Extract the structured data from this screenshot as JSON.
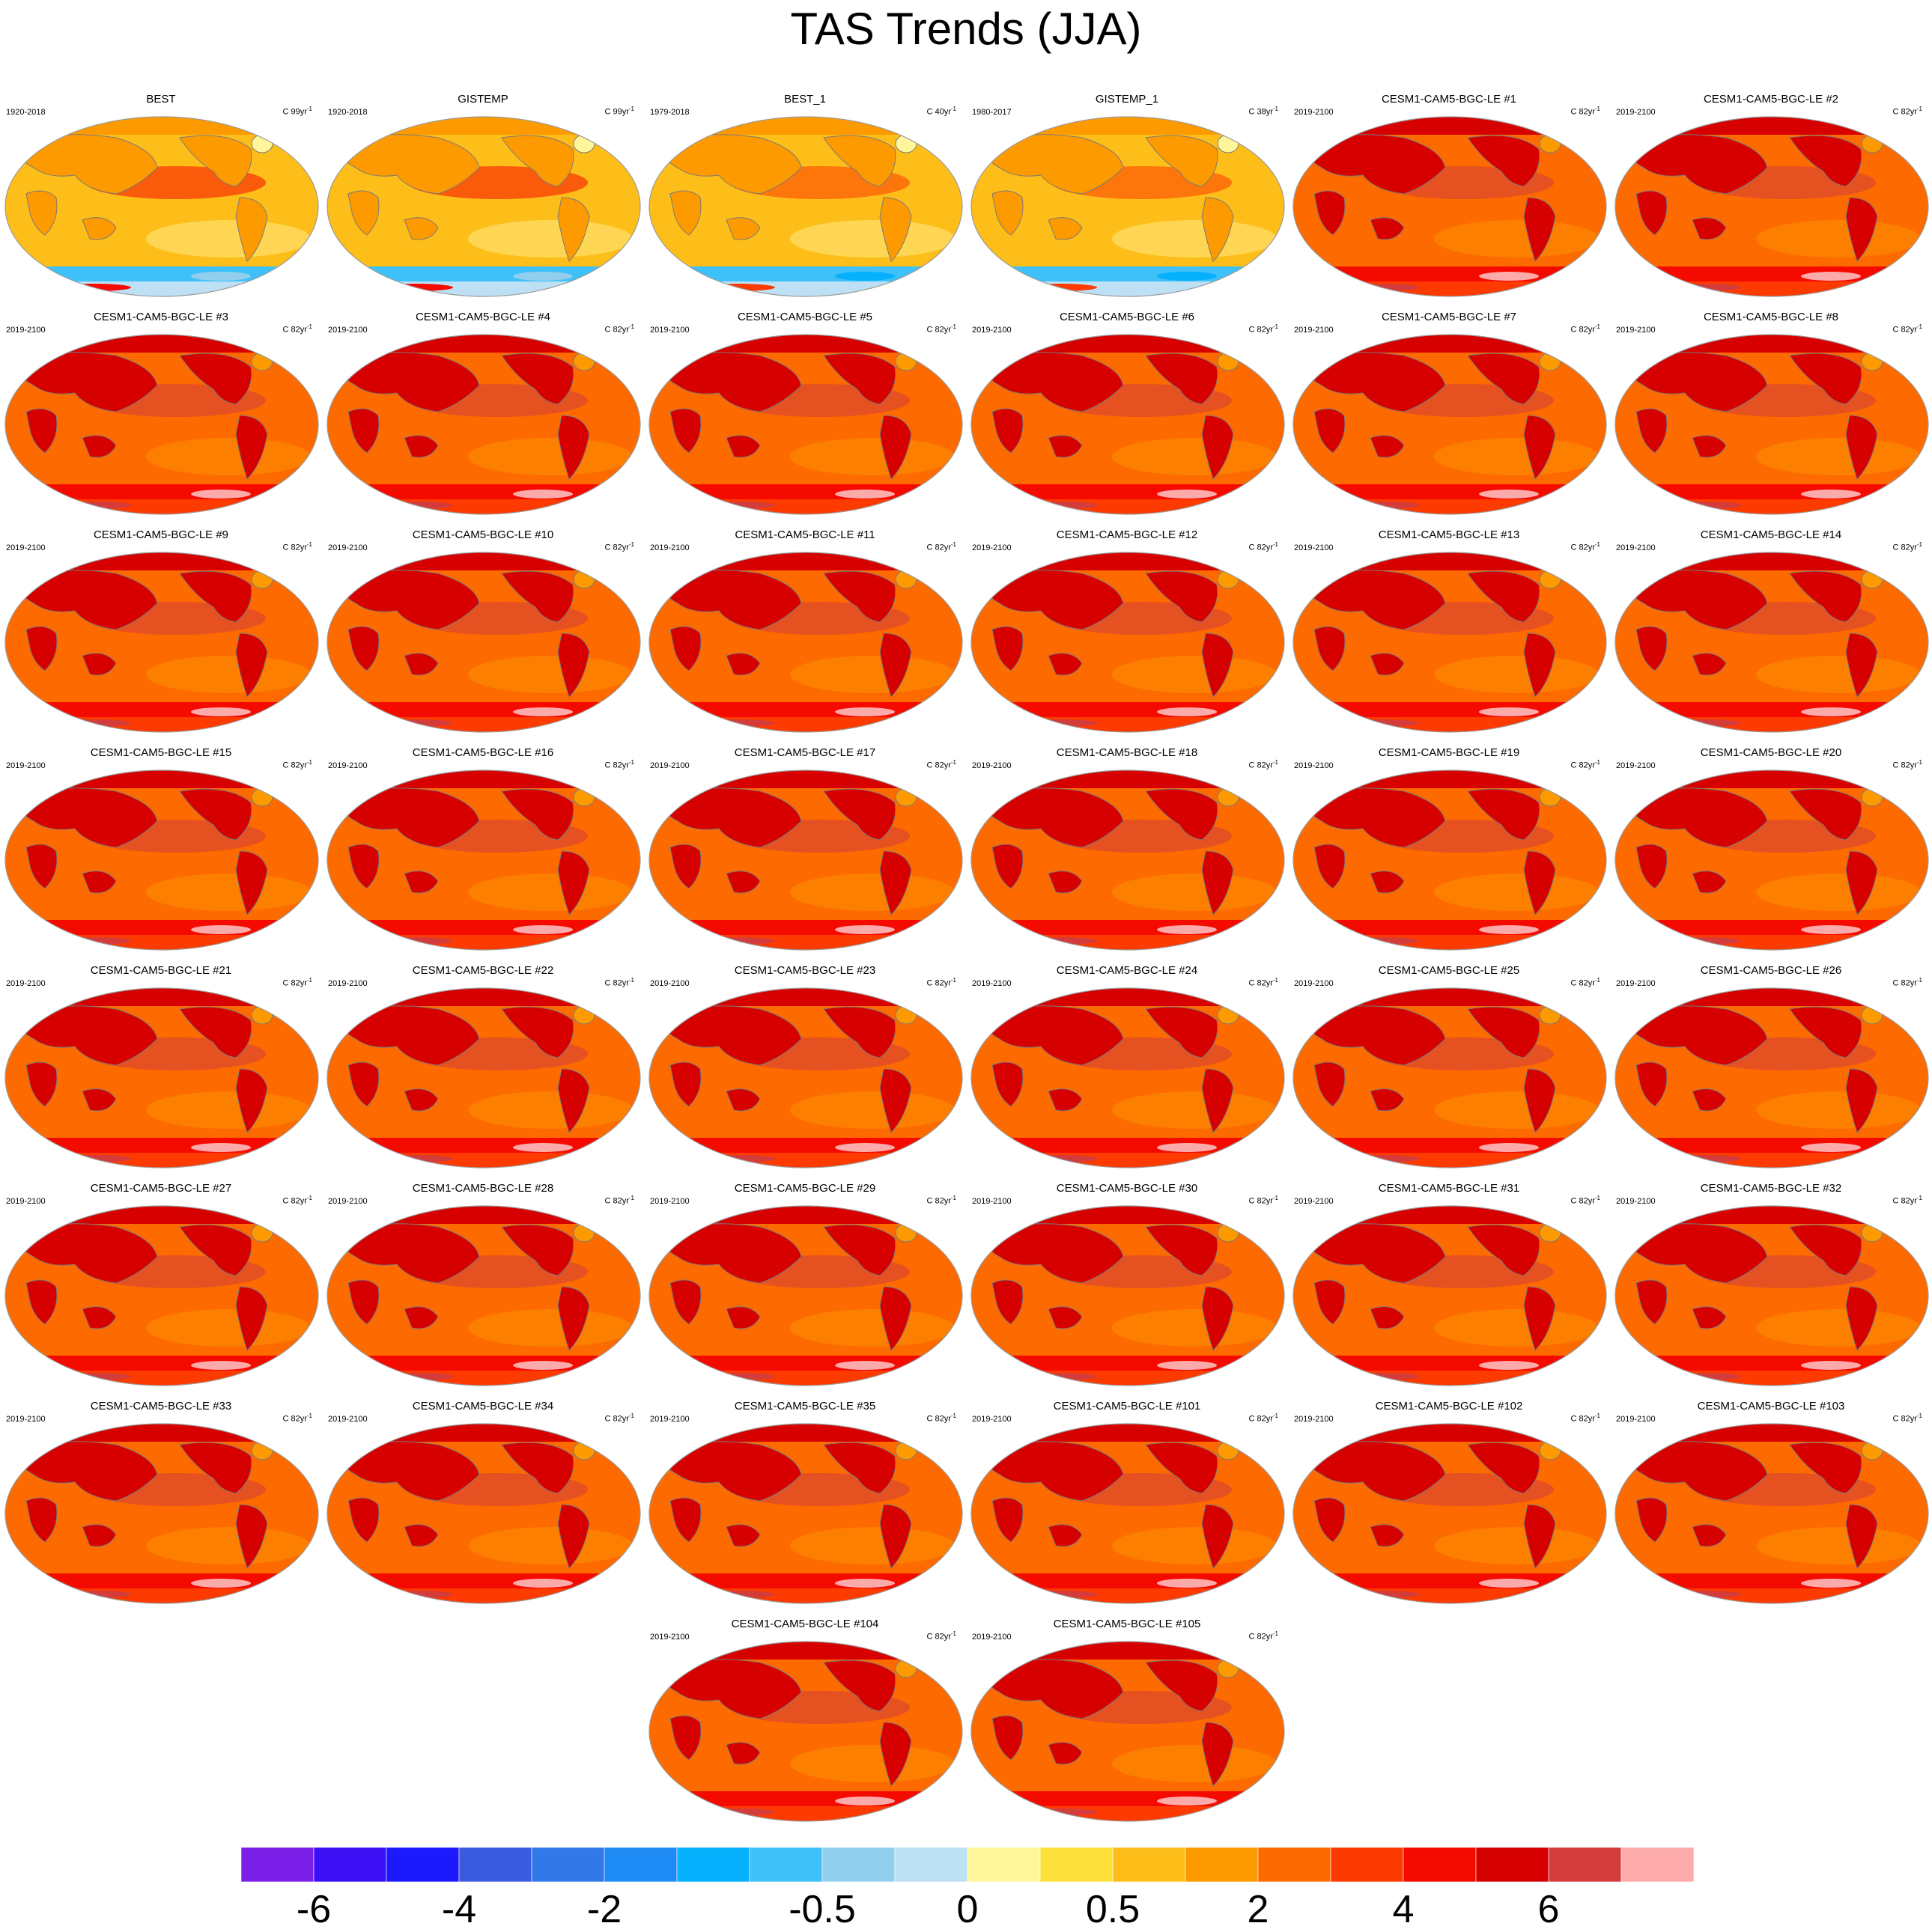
{
  "title": "TAS Trends (JJA)",
  "chart_data": {
    "type": "contour-map-grid",
    "projection": "Robinson global maps, Pacific-centered",
    "variable": "TAS",
    "season": "JJA",
    "units_label": "C",
    "panels": [
      {
        "name": "BEST",
        "period": "1920-2018",
        "units": "C 99yr",
        "style": "obs"
      },
      {
        "name": "GISTEMP",
        "period": "1920-2018",
        "units": "C 99yr",
        "style": "obs"
      },
      {
        "name": "BEST_1",
        "period": "1979-2018",
        "units": "C 40yr",
        "style": "obs2"
      },
      {
        "name": "GISTEMP_1",
        "period": "1980-2017",
        "units": "C 38yr",
        "style": "obs2"
      },
      {
        "name": "CESM1-CAM5-BGC-LE #1",
        "period": "2019-2100",
        "units": "C 82yr",
        "style": "model"
      },
      {
        "name": "CESM1-CAM5-BGC-LE #2",
        "period": "2019-2100",
        "units": "C 82yr",
        "style": "model"
      },
      {
        "name": "CESM1-CAM5-BGC-LE #3",
        "period": "2019-2100",
        "units": "C 82yr",
        "style": "model"
      },
      {
        "name": "CESM1-CAM5-BGC-LE #4",
        "period": "2019-2100",
        "units": "C 82yr",
        "style": "model"
      },
      {
        "name": "CESM1-CAM5-BGC-LE #5",
        "period": "2019-2100",
        "units": "C 82yr",
        "style": "model"
      },
      {
        "name": "CESM1-CAM5-BGC-LE #6",
        "period": "2019-2100",
        "units": "C 82yr",
        "style": "model"
      },
      {
        "name": "CESM1-CAM5-BGC-LE #7",
        "period": "2019-2100",
        "units": "C 82yr",
        "style": "model"
      },
      {
        "name": "CESM1-CAM5-BGC-LE #8",
        "period": "2019-2100",
        "units": "C 82yr",
        "style": "model"
      },
      {
        "name": "CESM1-CAM5-BGC-LE #9",
        "period": "2019-2100",
        "units": "C 82yr",
        "style": "model"
      },
      {
        "name": "CESM1-CAM5-BGC-LE #10",
        "period": "2019-2100",
        "units": "C 82yr",
        "style": "model"
      },
      {
        "name": "CESM1-CAM5-BGC-LE #11",
        "period": "2019-2100",
        "units": "C 82yr",
        "style": "model"
      },
      {
        "name": "CESM1-CAM5-BGC-LE #12",
        "period": "2019-2100",
        "units": "C 82yr",
        "style": "model"
      },
      {
        "name": "CESM1-CAM5-BGC-LE #13",
        "period": "2019-2100",
        "units": "C 82yr",
        "style": "model"
      },
      {
        "name": "CESM1-CAM5-BGC-LE #14",
        "period": "2019-2100",
        "units": "C 82yr",
        "style": "model"
      },
      {
        "name": "CESM1-CAM5-BGC-LE #15",
        "period": "2019-2100",
        "units": "C 82yr",
        "style": "model"
      },
      {
        "name": "CESM1-CAM5-BGC-LE #16",
        "period": "2019-2100",
        "units": "C 82yr",
        "style": "model"
      },
      {
        "name": "CESM1-CAM5-BGC-LE #17",
        "period": "2019-2100",
        "units": "C 82yr",
        "style": "model"
      },
      {
        "name": "CESM1-CAM5-BGC-LE #18",
        "period": "2019-2100",
        "units": "C 82yr",
        "style": "model"
      },
      {
        "name": "CESM1-CAM5-BGC-LE #19",
        "period": "2019-2100",
        "units": "C 82yr",
        "style": "model"
      },
      {
        "name": "CESM1-CAM5-BGC-LE #20",
        "period": "2019-2100",
        "units": "C 82yr",
        "style": "model"
      },
      {
        "name": "CESM1-CAM5-BGC-LE #21",
        "period": "2019-2100",
        "units": "C 82yr",
        "style": "model"
      },
      {
        "name": "CESM1-CAM5-BGC-LE #22",
        "period": "2019-2100",
        "units": "C 82yr",
        "style": "model"
      },
      {
        "name": "CESM1-CAM5-BGC-LE #23",
        "period": "2019-2100",
        "units": "C 82yr",
        "style": "model"
      },
      {
        "name": "CESM1-CAM5-BGC-LE #24",
        "period": "2019-2100",
        "units": "C 82yr",
        "style": "model"
      },
      {
        "name": "CESM1-CAM5-BGC-LE #25",
        "period": "2019-2100",
        "units": "C 82yr",
        "style": "model"
      },
      {
        "name": "CESM1-CAM5-BGC-LE #26",
        "period": "2019-2100",
        "units": "C 82yr",
        "style": "model"
      },
      {
        "name": "CESM1-CAM5-BGC-LE #27",
        "period": "2019-2100",
        "units": "C 82yr",
        "style": "model"
      },
      {
        "name": "CESM1-CAM5-BGC-LE #28",
        "period": "2019-2100",
        "units": "C 82yr",
        "style": "model"
      },
      {
        "name": "CESM1-CAM5-BGC-LE #29",
        "period": "2019-2100",
        "units": "C 82yr",
        "style": "model"
      },
      {
        "name": "CESM1-CAM5-BGC-LE #30",
        "period": "2019-2100",
        "units": "C 82yr",
        "style": "model"
      },
      {
        "name": "CESM1-CAM5-BGC-LE #31",
        "period": "2019-2100",
        "units": "C 82yr",
        "style": "model"
      },
      {
        "name": "CESM1-CAM5-BGC-LE #32",
        "period": "2019-2100",
        "units": "C 82yr",
        "style": "model"
      },
      {
        "name": "CESM1-CAM5-BGC-LE #33",
        "period": "2019-2100",
        "units": "C 82yr",
        "style": "model"
      },
      {
        "name": "CESM1-CAM5-BGC-LE #34",
        "period": "2019-2100",
        "units": "C 82yr",
        "style": "model"
      },
      {
        "name": "CESM1-CAM5-BGC-LE #35",
        "period": "2019-2100",
        "units": "C 82yr",
        "style": "model"
      },
      {
        "name": "CESM1-CAM5-BGC-LE #101",
        "period": "2019-2100",
        "units": "C 82yr",
        "style": "model"
      },
      {
        "name": "CESM1-CAM5-BGC-LE #102",
        "period": "2019-2100",
        "units": "C 82yr",
        "style": "model"
      },
      {
        "name": "CESM1-CAM5-BGC-LE #103",
        "period": "2019-2100",
        "units": "C 82yr",
        "style": "model"
      },
      {
        "name": "CESM1-CAM5-BGC-LE #104",
        "period": "2019-2100",
        "units": "C 82yr",
        "style": "model"
      },
      {
        "name": "CESM1-CAM5-BGC-LE #105",
        "period": "2019-2100",
        "units": "C 82yr",
        "style": "model"
      }
    ],
    "colorbar": {
      "colors": [
        "#7b1fe8",
        "#3b10f5",
        "#1c19ff",
        "#3a5be0",
        "#3278e8",
        "#1f8cf5",
        "#05b0fc",
        "#3ec0f8",
        "#92cfee",
        "#bde0f5",
        "#fff59a",
        "#fde13a",
        "#fdbe1a",
        "#fd9a00",
        "#fd6a00",
        "#fd3a00",
        "#f50a00",
        "#d60000",
        "#d43c3c",
        "#fcaaaa"
      ],
      "labels": [
        "-6",
        "-4",
        "-2",
        "-0.5",
        "0",
        "0.5",
        "2",
        "4",
        "6"
      ],
      "label_boundaries": [
        1,
        3,
        5,
        8,
        10,
        12,
        14,
        16,
        18
      ]
    }
  }
}
